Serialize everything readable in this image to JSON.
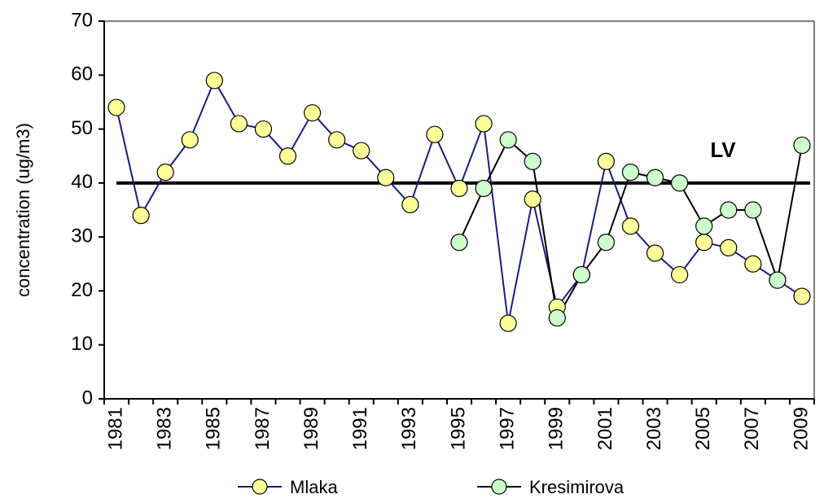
{
  "chart_data": {
    "type": "line",
    "y_label": "concentration (ug/m3)",
    "categories": [
      "1981",
      null,
      "1983",
      null,
      "1985",
      null,
      "1987",
      null,
      "1989",
      null,
      "1991",
      null,
      "1993",
      null,
      "1995",
      null,
      "1997",
      null,
      "1999",
      null,
      "2001",
      null,
      "2003",
      null,
      "2005",
      null,
      "2007",
      null,
      "2009"
    ],
    "series": [
      {
        "name": "Mlaka",
        "color": "#1a1a8c",
        "marker_color": "#ffff99",
        "values": [
          54,
          34,
          42,
          48,
          59,
          51,
          50,
          45,
          53,
          48,
          46,
          41,
          36,
          49,
          39,
          51,
          14,
          37,
          17,
          23,
          44,
          32,
          27,
          23,
          29,
          28,
          25,
          22,
          19
        ]
      },
      {
        "name": "Kresimirova",
        "color": "#000000",
        "marker_color": "#ccffcc",
        "values": [
          null,
          null,
          null,
          null,
          null,
          null,
          null,
          null,
          null,
          null,
          null,
          null,
          null,
          null,
          29,
          39,
          48,
          44,
          15,
          23,
          29,
          42,
          41,
          40,
          32,
          35,
          35,
          22,
          47
        ]
      }
    ],
    "reference_line": {
      "value": 40,
      "label": "LV",
      "color": "#000000"
    },
    "ylim": [
      0,
      70
    ],
    "yticks": [
      0,
      10,
      20,
      30,
      40,
      50,
      60,
      70
    ],
    "grid": false
  }
}
